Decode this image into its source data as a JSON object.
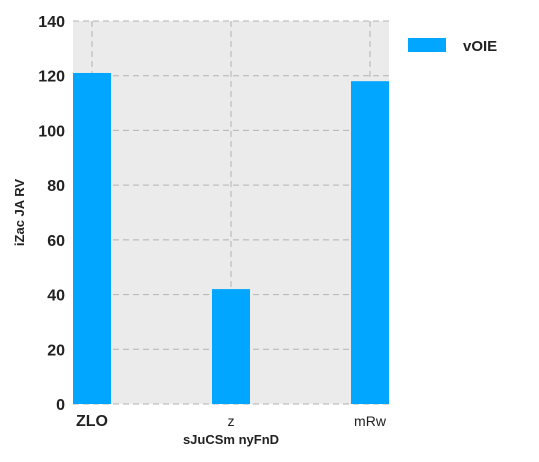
{
  "chart_data": {
    "type": "bar",
    "categories": [
      "ZLO",
      "z",
      "mRw"
    ],
    "series": [
      {
        "name": "vOIE",
        "values": [
          121,
          42,
          118
        ]
      }
    ],
    "xlabel": "sJuCSm nyFnD",
    "ylabel": "iZac  JA RV",
    "ylim": [
      0,
      140
    ],
    "yticks": [
      0,
      20,
      40,
      60,
      80,
      100,
      120,
      140
    ],
    "grid": true,
    "legend_position": "top-right",
    "colors": {
      "bar": "#00a6ff",
      "plot_background": "#ebebeb",
      "grid": "#b3b3b3"
    }
  }
}
